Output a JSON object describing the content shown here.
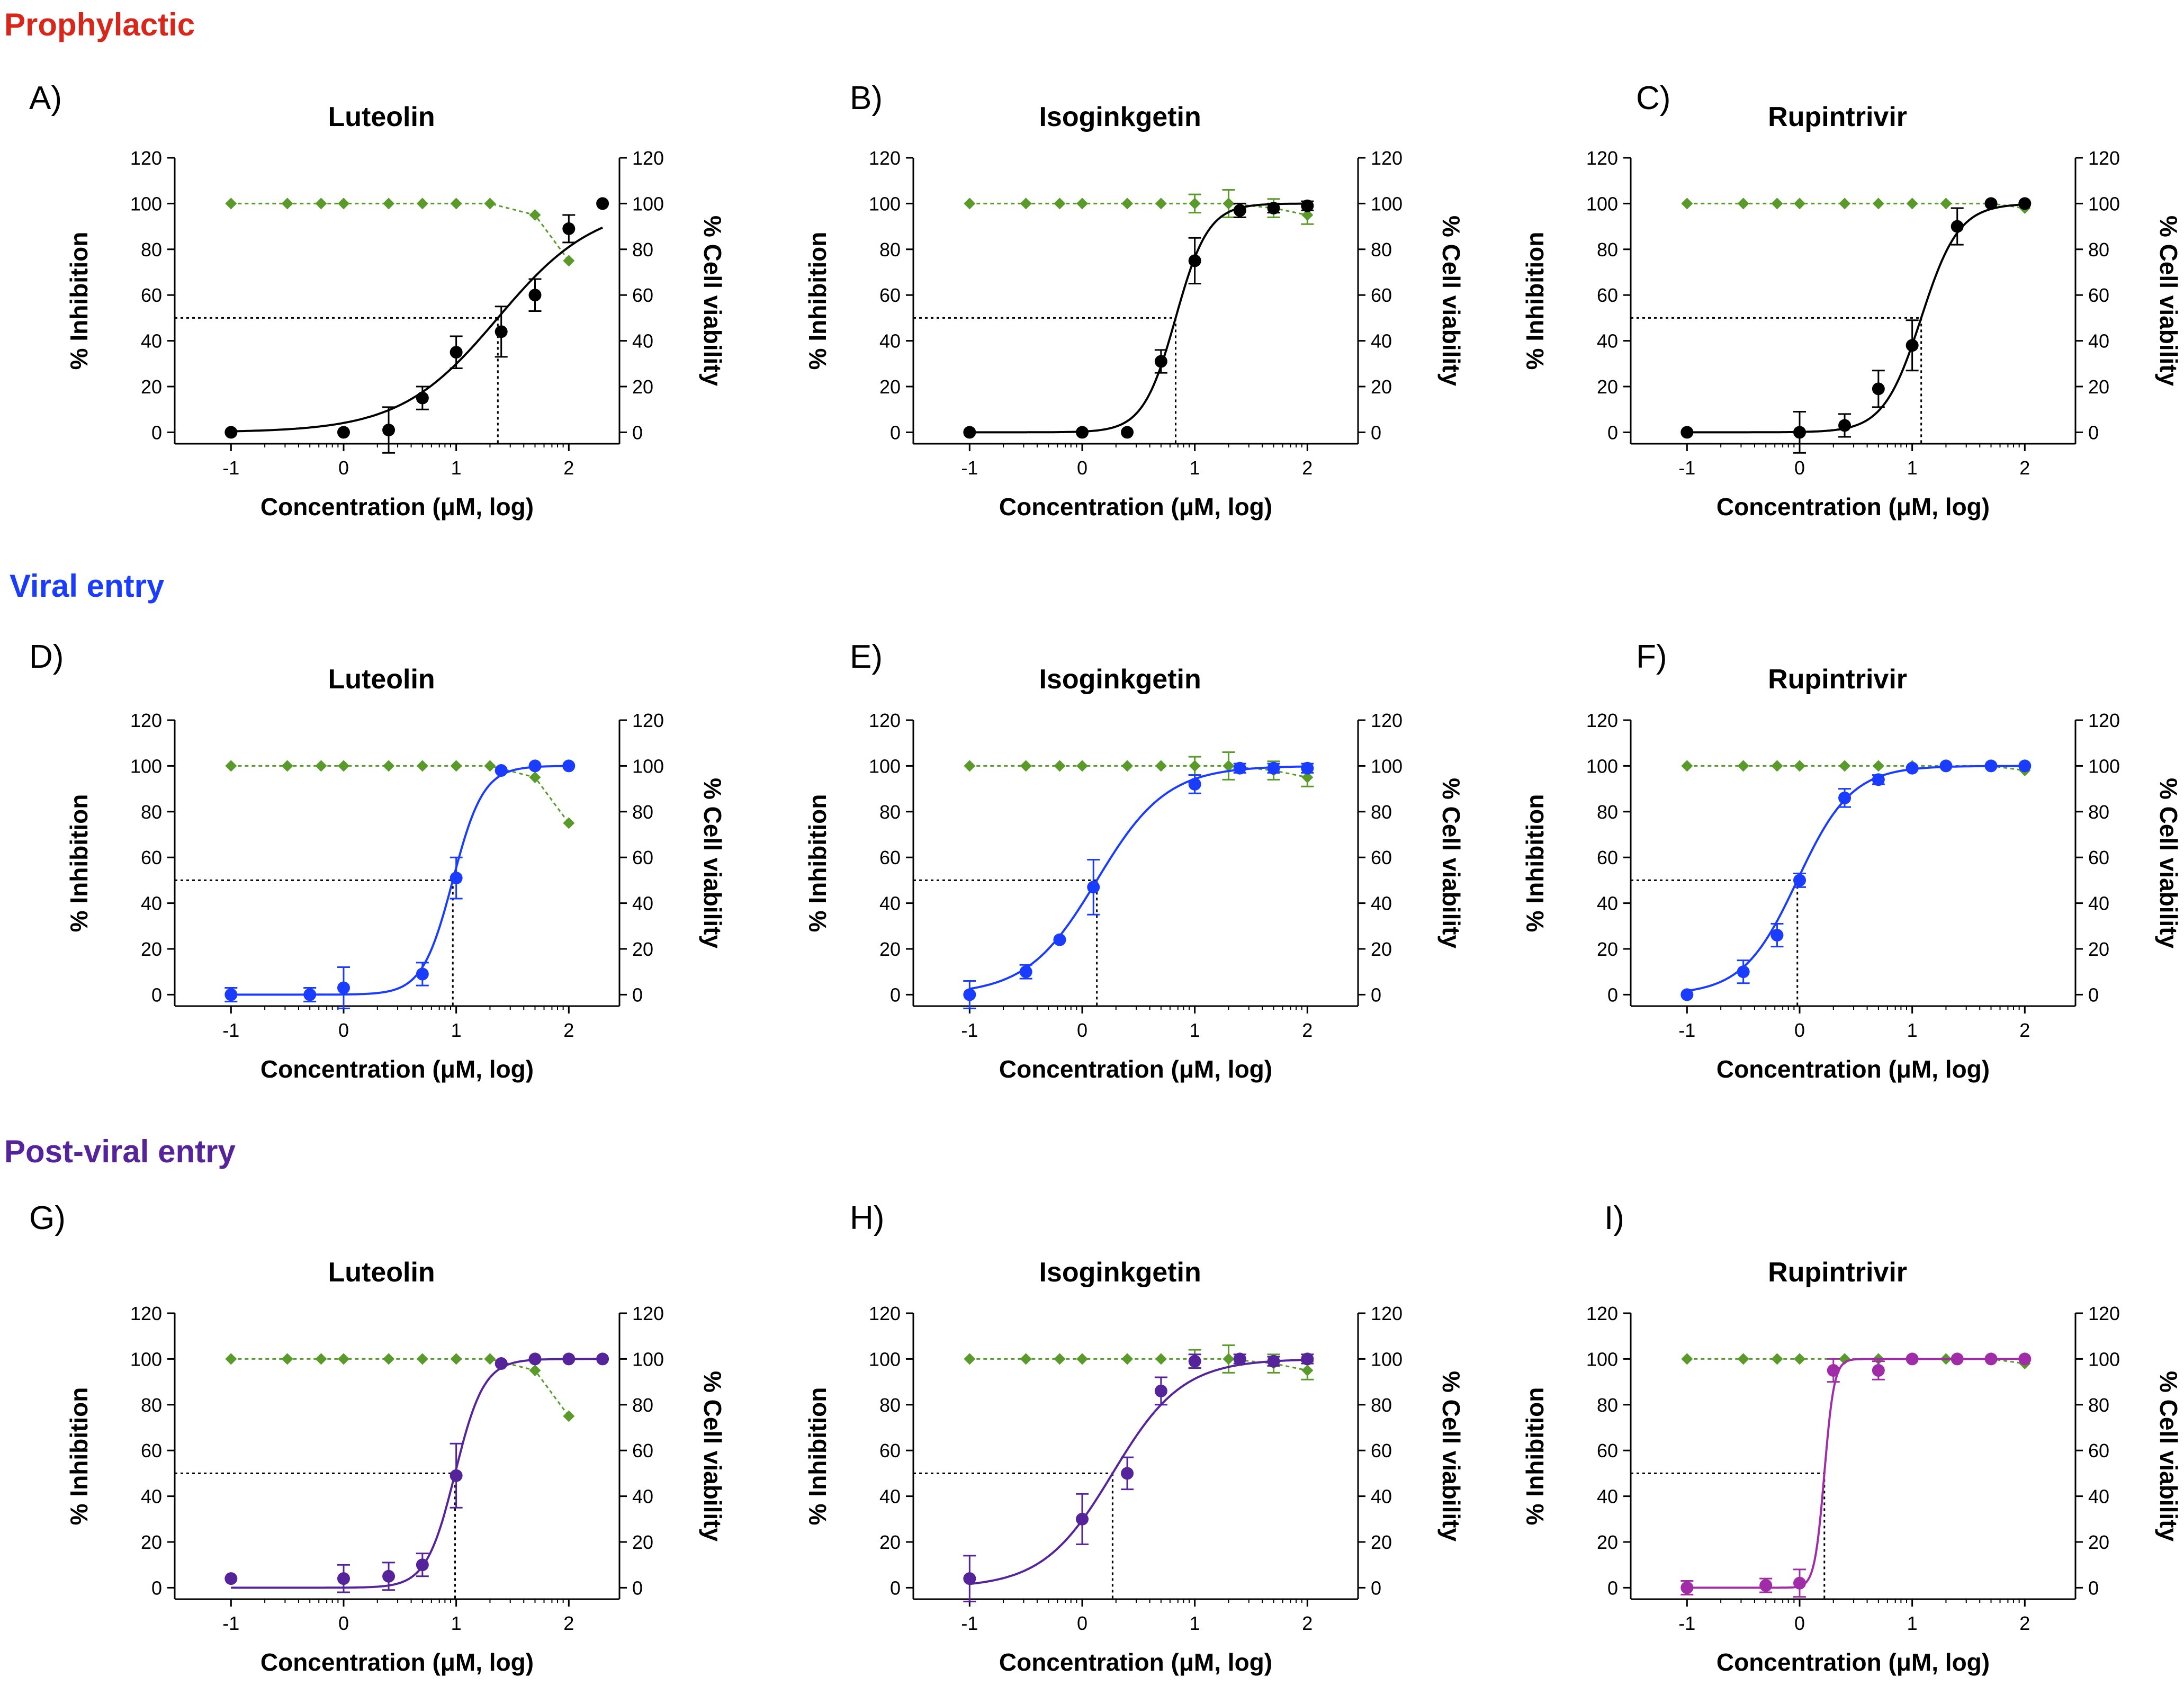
{
  "colors": {
    "prophylactic": "#d8261b",
    "viral_entry": "#1a3cff",
    "post_viral_entry": "#55239a",
    "post_viral_entry_rupintrivir": "#a02ca8",
    "viability": "#5a9a2a",
    "black": "#000000"
  },
  "sections": [
    {
      "id": "prophylactic",
      "title": "Prophylactic"
    },
    {
      "id": "viral_entry",
      "title": "Viral entry"
    },
    {
      "id": "post_viral_entry",
      "title": "Post-viral entry"
    }
  ],
  "axis_text": {
    "xlabel": "Concentration (μM, log)",
    "ylabel_left": "% Inhibition",
    "ylabel_right": "% Cell viability"
  },
  "chart_data": [
    {
      "letter": "A)",
      "type": "scatter",
      "title": "Luteolin",
      "section": "prophylactic",
      "xlim": [
        -1.5,
        2.45
      ],
      "ylim": [
        -5,
        120
      ],
      "xticks": [
        -1,
        0,
        1,
        2
      ],
      "yticks": [
        0,
        20,
        40,
        60,
        80,
        100,
        120
      ],
      "ic50": 1.37,
      "inhibition": {
        "color": "black",
        "x": [
          -1,
          0,
          0.4,
          0.7,
          1.0,
          1.4,
          1.7,
          2.0,
          2.3
        ],
        "y": [
          0,
          0,
          1,
          15,
          35,
          44,
          60,
          89,
          100
        ],
        "err": [
          0,
          0,
          10,
          5,
          7,
          11,
          7,
          6,
          0
        ],
        "fit": {
          "bottom": 0,
          "top": 100,
          "ec50": 1.37,
          "hill": 1.0
        }
      },
      "viability": {
        "x": [
          -1,
          -0.5,
          -0.2,
          0,
          0.4,
          0.7,
          1.0,
          1.3,
          1.7,
          2.0
        ],
        "y": [
          100,
          100,
          100,
          100,
          100,
          100,
          100,
          100,
          95,
          75
        ]
      }
    },
    {
      "letter": "B)",
      "type": "scatter",
      "title": "Isoginkgetin",
      "section": "prophylactic",
      "xlim": [
        -1.5,
        2.45
      ],
      "ylim": [
        -5,
        120
      ],
      "xticks": [
        -1,
        0,
        1,
        2
      ],
      "yticks": [
        0,
        20,
        40,
        60,
        80,
        100,
        120
      ],
      "ic50": 0.83,
      "inhibition": {
        "color": "black",
        "x": [
          -1,
          0,
          0.4,
          0.7,
          1.0,
          1.4,
          1.7,
          2.0
        ],
        "y": [
          0,
          0,
          0,
          31,
          75,
          97,
          98,
          99
        ],
        "err": [
          0,
          0,
          0,
          5,
          10,
          3,
          2,
          2
        ],
        "fit": {
          "bottom": 0,
          "top": 100,
          "ec50": 0.83,
          "hill": 3.0
        }
      },
      "viability": {
        "x": [
          -1,
          -0.5,
          -0.2,
          0,
          0.4,
          0.7,
          1.0,
          1.3,
          1.7,
          2.0
        ],
        "y": [
          100,
          100,
          100,
          100,
          100,
          100,
          100,
          100,
          98,
          95
        ],
        "err": [
          0,
          0,
          0,
          0,
          0,
          0,
          4,
          6,
          4,
          4
        ]
      }
    },
    {
      "letter": "C)",
      "type": "scatter",
      "title": "Rupintrivir",
      "section": "prophylactic",
      "xlim": [
        -1.5,
        2.45
      ],
      "ylim": [
        -5,
        120
      ],
      "xticks": [
        -1,
        0,
        1,
        2
      ],
      "yticks": [
        0,
        20,
        40,
        60,
        80,
        100,
        120
      ],
      "ic50": 1.08,
      "inhibition": {
        "color": "black",
        "x": [
          -1,
          0,
          0.4,
          0.7,
          1.0,
          1.4,
          1.7,
          2.0
        ],
        "y": [
          0,
          0,
          3,
          19,
          38,
          90,
          100,
          100
        ],
        "err": [
          0,
          9,
          5,
          8,
          11,
          8,
          0,
          0
        ],
        "fit": {
          "bottom": 0,
          "top": 100,
          "ec50": 1.08,
          "hill": 2.6
        }
      },
      "viability": {
        "x": [
          -1,
          -0.5,
          -0.2,
          0,
          0.4,
          0.7,
          1.0,
          1.3,
          1.7,
          2.0
        ],
        "y": [
          100,
          100,
          100,
          100,
          100,
          100,
          100,
          100,
          100,
          98
        ]
      }
    },
    {
      "letter": "D)",
      "type": "scatter",
      "title": "Luteolin",
      "section": "viral_entry",
      "xlim": [
        -1.5,
        2.45
      ],
      "ylim": [
        -5,
        120
      ],
      "xticks": [
        -1,
        0,
        1,
        2
      ],
      "yticks": [
        0,
        20,
        40,
        60,
        80,
        100,
        120
      ],
      "ic50": 0.97,
      "inhibition": {
        "color": "viral_entry",
        "x": [
          -1,
          -0.3,
          0,
          0.7,
          1.0,
          1.4,
          1.7,
          2.0
        ],
        "y": [
          0,
          0,
          3,
          9,
          51,
          98,
          100,
          100
        ],
        "err": [
          3,
          3,
          9,
          5,
          9,
          0,
          0,
          0
        ],
        "fit": {
          "bottom": 0,
          "top": 100,
          "ec50": 0.97,
          "hill": 3.2
        }
      },
      "viability": {
        "x": [
          -1,
          -0.5,
          -0.2,
          0,
          0.4,
          0.7,
          1.0,
          1.3,
          1.7,
          2.0
        ],
        "y": [
          100,
          100,
          100,
          100,
          100,
          100,
          100,
          100,
          95,
          75
        ]
      }
    },
    {
      "letter": "E)",
      "type": "scatter",
      "title": "Isoginkgetin",
      "section": "viral_entry",
      "xlim": [
        -1.5,
        2.45
      ],
      "ylim": [
        -5,
        120
      ],
      "xticks": [
        -1,
        0,
        1,
        2
      ],
      "yticks": [
        0,
        20,
        40,
        60,
        80,
        100,
        120
      ],
      "ic50": 0.13,
      "inhibition": {
        "color": "viral_entry",
        "x": [
          -1,
          -0.5,
          -0.2,
          0.1,
          1.0,
          1.4,
          1.7,
          2.0
        ],
        "y": [
          0,
          10,
          24,
          47,
          92,
          99,
          99,
          99
        ],
        "err": [
          6,
          3,
          0,
          12,
          4,
          2,
          2,
          2
        ],
        "fit": {
          "bottom": 0,
          "top": 100,
          "ec50": 0.13,
          "hill": 1.4
        }
      },
      "viability": {
        "x": [
          -1,
          -0.5,
          -0.2,
          0,
          0.4,
          0.7,
          1.0,
          1.3,
          1.7,
          2.0
        ],
        "y": [
          100,
          100,
          100,
          100,
          100,
          100,
          100,
          100,
          98,
          95
        ],
        "err": [
          0,
          0,
          0,
          0,
          0,
          0,
          4,
          6,
          4,
          4
        ]
      }
    },
    {
      "letter": "F)",
      "type": "scatter",
      "title": "Rupintrivir",
      "section": "viral_entry",
      "xlim": [
        -1.5,
        2.45
      ],
      "ylim": [
        -5,
        120
      ],
      "xticks": [
        -1,
        0,
        1,
        2
      ],
      "yticks": [
        0,
        20,
        40,
        60,
        80,
        100,
        120
      ],
      "ic50": -0.02,
      "inhibition": {
        "color": "viral_entry",
        "x": [
          -1,
          -0.5,
          -0.2,
          0,
          0.4,
          0.7,
          1.0,
          1.3,
          1.7,
          2.0
        ],
        "y": [
          0,
          10,
          26,
          50,
          86,
          94,
          99,
          100,
          100,
          100
        ],
        "err": [
          0,
          5,
          5,
          3,
          4,
          2,
          0,
          0,
          0,
          0
        ],
        "fit": {
          "bottom": 0,
          "top": 100,
          "ec50": -0.02,
          "hill": 1.8
        }
      },
      "viability": {
        "x": [
          -1,
          -0.5,
          -0.2,
          0,
          0.4,
          0.7,
          1.0,
          1.3,
          1.7,
          2.0
        ],
        "y": [
          100,
          100,
          100,
          100,
          100,
          100,
          100,
          100,
          100,
          98
        ]
      }
    },
    {
      "letter": "G)",
      "type": "scatter",
      "title": "Luteolin",
      "section": "post_viral_entry",
      "xlim": [
        -1.5,
        2.45
      ],
      "ylim": [
        -5,
        120
      ],
      "xticks": [
        -1,
        0,
        1,
        2
      ],
      "yticks": [
        0,
        20,
        40,
        60,
        80,
        100,
        120
      ],
      "ic50": 0.99,
      "inhibition": {
        "color": "post_viral_entry",
        "x": [
          -1,
          0,
          0.4,
          0.7,
          1.0,
          1.4,
          1.7,
          2.0,
          2.3
        ],
        "y": [
          4,
          4,
          5,
          10,
          49,
          98,
          100,
          100,
          100
        ],
        "err": [
          0,
          6,
          6,
          5,
          14,
          0,
          0,
          0,
          0
        ],
        "fit": {
          "bottom": 0,
          "top": 100,
          "ec50": 0.99,
          "hill": 3.4
        }
      },
      "viability": {
        "x": [
          -1,
          -0.5,
          -0.2,
          0,
          0.4,
          0.7,
          1.0,
          1.3,
          1.7,
          2.0
        ],
        "y": [
          100,
          100,
          100,
          100,
          100,
          100,
          100,
          100,
          95,
          75
        ]
      }
    },
    {
      "letter": "H)",
      "type": "scatter",
      "title": "Isoginkgetin",
      "section": "post_viral_entry",
      "xlim": [
        -1.5,
        2.45
      ],
      "ylim": [
        -5,
        120
      ],
      "xticks": [
        -1,
        0,
        1,
        2
      ],
      "yticks": [
        0,
        20,
        40,
        60,
        80,
        100,
        120
      ],
      "ic50": 0.27,
      "inhibition": {
        "color": "post_viral_entry",
        "x": [
          -1,
          0,
          0.4,
          0.7,
          1.0,
          1.4,
          1.7,
          2.0
        ],
        "y": [
          4,
          30,
          50,
          86,
          99,
          100,
          99,
          100
        ],
        "err": [
          10,
          11,
          7,
          6,
          3,
          2,
          2,
          2
        ],
        "fit": {
          "bottom": 0,
          "top": 100,
          "ec50": 0.27,
          "hill": 1.4
        }
      },
      "viability": {
        "x": [
          -1,
          -0.5,
          -0.2,
          0,
          0.4,
          0.7,
          1.0,
          1.3,
          1.7,
          2.0
        ],
        "y": [
          100,
          100,
          100,
          100,
          100,
          100,
          100,
          100,
          98,
          95
        ],
        "err": [
          0,
          0,
          0,
          0,
          0,
          0,
          4,
          6,
          4,
          4
        ]
      }
    },
    {
      "letter": "I)",
      "type": "scatter",
      "title": "Rupintrivir",
      "section": "post_viral_entry",
      "xlim": [
        -1.5,
        2.45
      ],
      "ylim": [
        -5,
        120
      ],
      "xticks": [
        -1,
        0,
        1,
        2
      ],
      "yticks": [
        0,
        20,
        40,
        60,
        80,
        100,
        120
      ],
      "ic50": 0.22,
      "inhibition": {
        "color": "post_viral_entry_rupintrivir",
        "x": [
          -1,
          -0.3,
          0,
          0.3,
          0.7,
          1.0,
          1.4,
          1.7,
          2.0
        ],
        "y": [
          0,
          1,
          2,
          95,
          95,
          100,
          100,
          100,
          100
        ],
        "err": [
          3,
          3,
          6,
          5,
          4,
          0,
          0,
          0,
          0
        ],
        "fit": {
          "bottom": 0,
          "top": 100,
          "ec50": 0.22,
          "hill": 10.0
        }
      },
      "viability": {
        "x": [
          -1,
          -0.5,
          -0.2,
          0,
          0.4,
          0.7,
          1.0,
          1.3,
          1.7,
          2.0
        ],
        "y": [
          100,
          100,
          100,
          100,
          100,
          100,
          100,
          100,
          100,
          98
        ]
      }
    }
  ]
}
